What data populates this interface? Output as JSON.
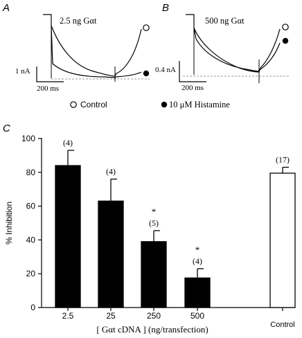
{
  "panel_a": {
    "label": "A",
    "condition": "2.5 ng Gαt",
    "scale_current": "1 nA",
    "scale_time": "200 ms"
  },
  "panel_b": {
    "label": "B",
    "condition": "500 ng Gαt",
    "scale_current": "0.4 nA",
    "scale_time": "200 ms"
  },
  "legend": {
    "control": "Control",
    "histamine": "10 μM Histamine"
  },
  "panel_c": {
    "label": "C"
  },
  "chart_data": {
    "type": "bar",
    "title": "",
    "xlabel": "[ Gαt cDNA ] (ng/transfection)",
    "ylabel": "% Inhibition",
    "ylim": [
      0,
      100
    ],
    "yticks": [
      0,
      20,
      40,
      60,
      80,
      100
    ],
    "categories": [
      "2.5",
      "25",
      "250",
      "500",
      "Control"
    ],
    "values": [
      84,
      63,
      39,
      17.5,
      79.5
    ],
    "errors": [
      9,
      13,
      6.5,
      5.5,
      3.5
    ],
    "n_labels": [
      "(4)",
      "(4)",
      "(5)",
      "(4)",
      "(17)"
    ],
    "significance": [
      "",
      "",
      "*",
      "*",
      ""
    ],
    "fills": [
      "#000000",
      "#000000",
      "#000000",
      "#000000",
      "#ffffff"
    ]
  }
}
